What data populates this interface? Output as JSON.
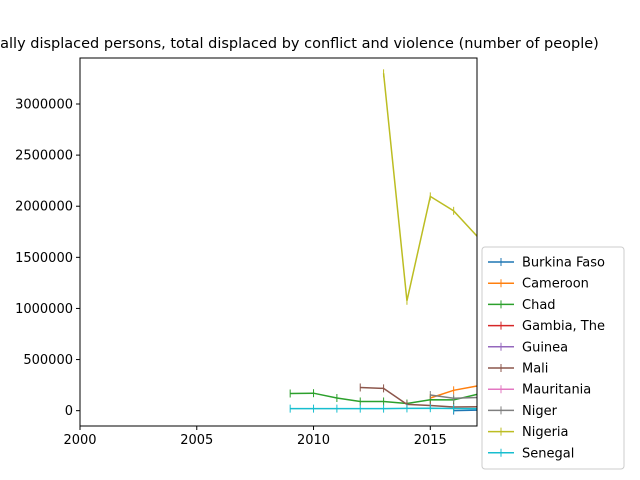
{
  "chart_data": {
    "type": "line",
    "title": "Internally displaced persons, total displaced by conflict and violence (number of people)",
    "xlabel": "",
    "ylabel": "",
    "xlim": [
      2000,
      2017
    ],
    "ylim": [
      -150000,
      3450000
    ],
    "xticks": [
      2000,
      2005,
      2010,
      2015
    ],
    "yticks": [
      0,
      500000,
      1000000,
      1500000,
      2000000,
      2500000,
      3000000
    ],
    "grid": false,
    "legend_position": "lower-right",
    "series": [
      {
        "name": "Burkina Faso",
        "color": "#1f77b4",
        "points": [
          [
            2016,
            700
          ],
          [
            2017,
            5000
          ]
        ]
      },
      {
        "name": "Cameroon",
        "color": "#ff7f0e",
        "points": [
          [
            2015,
            124000
          ],
          [
            2016,
            199000
          ],
          [
            2017,
            241000
          ]
        ]
      },
      {
        "name": "Chad",
        "color": "#2ca02c",
        "points": [
          [
            2009,
            168000
          ],
          [
            2010,
            171000
          ],
          [
            2011,
            124000
          ],
          [
            2012,
            90000
          ],
          [
            2013,
            90000
          ],
          [
            2014,
            70000
          ],
          [
            2015,
            107000
          ],
          [
            2016,
            105000
          ],
          [
            2017,
            159000
          ]
        ]
      },
      {
        "name": "Gambia, The",
        "color": "#d62728",
        "points": []
      },
      {
        "name": "Guinea",
        "color": "#9467bd",
        "points": []
      },
      {
        "name": "Mali",
        "color": "#8c564b",
        "points": [
          [
            2012,
            227000
          ],
          [
            2013,
            218000
          ],
          [
            2014,
            62000
          ],
          [
            2015,
            50000
          ],
          [
            2016,
            36000
          ],
          [
            2017,
            38000
          ]
        ]
      },
      {
        "name": "Mauritania",
        "color": "#e377c2",
        "points": []
      },
      {
        "name": "Niger",
        "color": "#7f7f7f",
        "points": [
          [
            2015,
            153000
          ],
          [
            2016,
            121000
          ],
          [
            2017,
            129000
          ]
        ]
      },
      {
        "name": "Nigeria",
        "color": "#bcbd22",
        "points": [
          [
            2013,
            3300000
          ],
          [
            2014,
            1075000
          ],
          [
            2015,
            2096000
          ],
          [
            2016,
            1955000
          ],
          [
            2017,
            1707000
          ]
        ]
      },
      {
        "name": "Senegal",
        "color": "#17becf",
        "points": [
          [
            2009,
            20000
          ],
          [
            2010,
            20000
          ],
          [
            2011,
            20000
          ],
          [
            2012,
            20000
          ],
          [
            2013,
            20000
          ],
          [
            2014,
            22000
          ],
          [
            2015,
            24000
          ],
          [
            2016,
            21000
          ],
          [
            2017,
            20000
          ]
        ]
      }
    ]
  }
}
